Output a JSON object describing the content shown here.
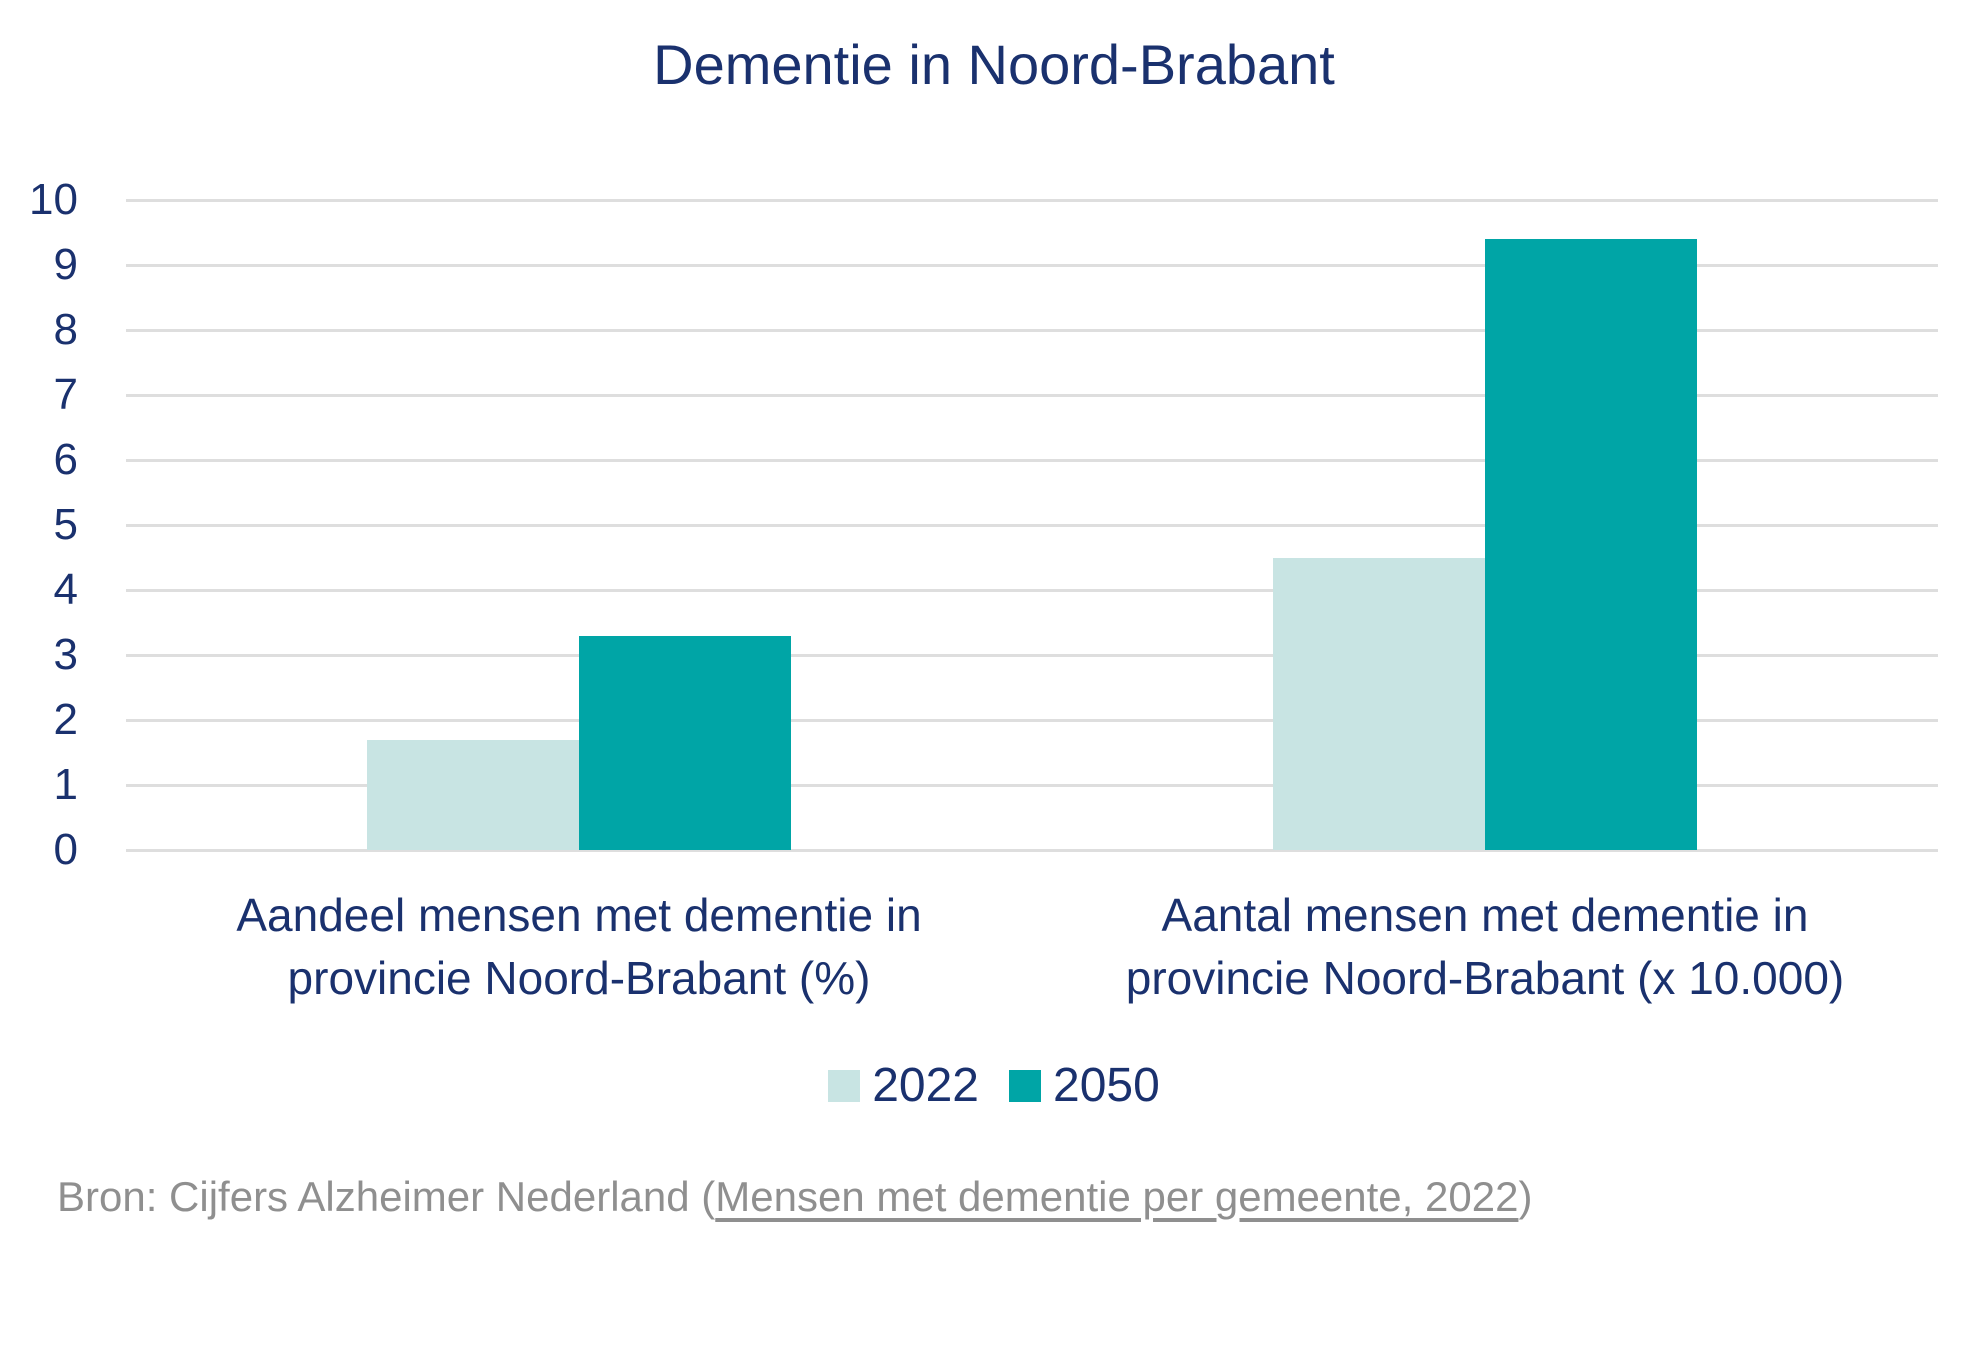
{
  "page": {
    "background": "#ffffff"
  },
  "title": "Dementie in Noord-Brabant",
  "chart_data": {
    "type": "bar",
    "title": "Dementie in Noord-Brabant",
    "categories": [
      "Aandeel mensen met dementie in provincie Noord-Brabant (%)",
      "Aantal mensen met dementie in provincie Noord-Brabant (x 10.000)"
    ],
    "categories_display": [
      "Aandeel mensen met dementie in\nprovincie Noord-Brabant (%)",
      "Aantal mensen met dementie in\nprovincie Noord-Brabant (x 10.000)"
    ],
    "series": [
      {
        "name": "2022",
        "color": "#c8e4e3",
        "values": [
          1.7,
          4.5
        ]
      },
      {
        "name": "2050",
        "color": "#00a5a6",
        "values": [
          3.3,
          9.4
        ]
      }
    ],
    "ylim": [
      0,
      10
    ],
    "yticks": [
      0,
      1,
      2,
      3,
      4,
      5,
      6,
      7,
      8,
      9,
      10
    ],
    "xlabel": "",
    "ylabel": "",
    "grid": "horizontal",
    "legend_position": "bottom"
  },
  "legend": {
    "items": [
      {
        "label": "2022",
        "color": "#c8e4e3"
      },
      {
        "label": "2050",
        "color": "#00a5a6"
      }
    ]
  },
  "source": {
    "prefix": "Bron: Cijfers Alzheimer Nederland (",
    "link_text": "Mensen met dementie per gemeente, 2022",
    "suffix": ")"
  },
  "colors": {
    "text_navy": "#1a316e",
    "gridline": "#dedede",
    "source_gray": "#8f8f8f",
    "series_2022": "#c8e4e3",
    "series_2050": "#00a5a6"
  }
}
